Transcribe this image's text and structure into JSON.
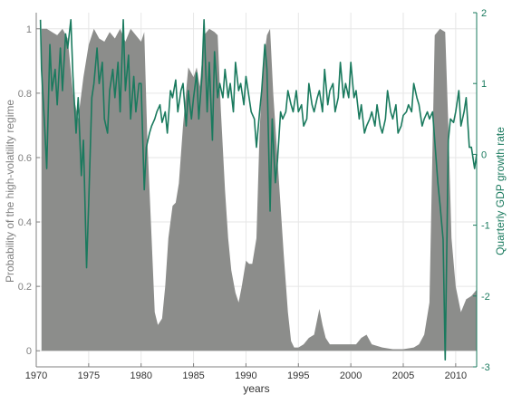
{
  "chart_data": {
    "type": "area",
    "xlabel": "years",
    "ylabel_left": "Probability of the high-volatility regime",
    "ylabel_right": "Quarterly GDP growth rate",
    "xlim": [
      1970,
      2012
    ],
    "ylim_left": [
      -0.05,
      1.05
    ],
    "ylim_right": [
      -3,
      2
    ],
    "x_ticks": [
      1970,
      1975,
      1980,
      1985,
      1990,
      1995,
      2000,
      2005,
      2010
    ],
    "y_left_ticks": [
      0,
      0.2,
      0.4,
      0.6,
      0.8,
      1
    ],
    "y_right_ticks": [
      -3,
      -2,
      -1,
      0,
      1,
      2
    ],
    "grid": true,
    "legend": "none",
    "colors": {
      "area": "#8c8d8b",
      "line": "#1a7a5e",
      "right_axis": "#1a7a5e",
      "left_axis": "#808080",
      "grid": "#e6e6e6"
    },
    "series": [
      {
        "axis": "left",
        "kind": "area",
        "points": [
          [
            1970.5,
            1.0
          ],
          [
            1971.0,
            1.0
          ],
          [
            1971.5,
            0.99
          ],
          [
            1972.0,
            0.98
          ],
          [
            1972.5,
            1.0
          ],
          [
            1973.0,
            0.97
          ],
          [
            1973.5,
            0.8
          ],
          [
            1974.0,
            0.72
          ],
          [
            1974.5,
            0.85
          ],
          [
            1975.0,
            0.95
          ],
          [
            1975.5,
            1.0
          ],
          [
            1976.0,
            0.97
          ],
          [
            1976.5,
            0.96
          ],
          [
            1977.0,
            0.99
          ],
          [
            1977.5,
            0.97
          ],
          [
            1978.0,
            1.0
          ],
          [
            1978.5,
            0.96
          ],
          [
            1979.0,
            1.0
          ],
          [
            1979.5,
            0.98
          ],
          [
            1980.0,
            0.96
          ],
          [
            1980.3,
            0.99
          ],
          [
            1980.6,
            0.65
          ],
          [
            1981.0,
            0.35
          ],
          [
            1981.3,
            0.12
          ],
          [
            1981.6,
            0.08
          ],
          [
            1982.0,
            0.1
          ],
          [
            1982.3,
            0.2
          ],
          [
            1982.6,
            0.35
          ],
          [
            1983.0,
            0.45
          ],
          [
            1983.3,
            0.46
          ],
          [
            1983.6,
            0.52
          ],
          [
            1984.0,
            0.7
          ],
          [
            1984.5,
            0.88
          ],
          [
            1985.0,
            0.85
          ],
          [
            1985.3,
            0.88
          ],
          [
            1985.6,
            0.82
          ],
          [
            1986.0,
            0.98
          ],
          [
            1986.5,
            1.0
          ],
          [
            1987.0,
            0.99
          ],
          [
            1987.3,
            0.98
          ],
          [
            1987.6,
            0.75
          ],
          [
            1988.0,
            0.5
          ],
          [
            1988.3,
            0.35
          ],
          [
            1988.6,
            0.25
          ],
          [
            1989.0,
            0.18
          ],
          [
            1989.3,
            0.15
          ],
          [
            1989.6,
            0.2
          ],
          [
            1990.0,
            0.28
          ],
          [
            1990.3,
            0.27
          ],
          [
            1990.6,
            0.27
          ],
          [
            1991.0,
            0.35
          ],
          [
            1991.3,
            0.68
          ],
          [
            1991.6,
            0.88
          ],
          [
            1992.0,
            0.98
          ],
          [
            1992.3,
            1.0
          ],
          [
            1992.6,
            0.8
          ],
          [
            1993.0,
            0.6
          ],
          [
            1993.3,
            0.45
          ],
          [
            1993.6,
            0.3
          ],
          [
            1994.0,
            0.12
          ],
          [
            1994.3,
            0.03
          ],
          [
            1994.6,
            0.01
          ],
          [
            1995.0,
            0.01
          ],
          [
            1995.5,
            0.02
          ],
          [
            1996.0,
            0.04
          ],
          [
            1996.5,
            0.05
          ],
          [
            1997.0,
            0.13
          ],
          [
            1997.3,
            0.08
          ],
          [
            1997.6,
            0.04
          ],
          [
            1998.0,
            0.02
          ],
          [
            1999.0,
            0.02
          ],
          [
            2000.0,
            0.02
          ],
          [
            2000.5,
            0.02
          ],
          [
            2001.0,
            0.04
          ],
          [
            2001.5,
            0.05
          ],
          [
            2002.0,
            0.02
          ],
          [
            2003.0,
            0.01
          ],
          [
            2004.0,
            0.005
          ],
          [
            2005.0,
            0.005
          ],
          [
            2006.0,
            0.01
          ],
          [
            2006.5,
            0.02
          ],
          [
            2007.0,
            0.05
          ],
          [
            2007.5,
            0.15
          ],
          [
            2008.0,
            0.98
          ],
          [
            2008.5,
            1.0
          ],
          [
            2009.0,
            0.99
          ],
          [
            2009.3,
            0.7
          ],
          [
            2009.6,
            0.35
          ],
          [
            2010.0,
            0.2
          ],
          [
            2010.5,
            0.12
          ],
          [
            2011.0,
            0.16
          ],
          [
            2011.5,
            0.17
          ],
          [
            2012.0,
            0.19
          ]
        ]
      },
      {
        "axis": "right",
        "kind": "line",
        "name": "",
        "points": [
          [
            1970.4,
            1.9
          ],
          [
            1970.5,
            1.2
          ],
          [
            1970.8,
            0.4
          ],
          [
            1971.0,
            -0.2
          ],
          [
            1971.3,
            1.55
          ],
          [
            1971.5,
            0.9
          ],
          [
            1971.8,
            1.2
          ],
          [
            1972.0,
            0.7
          ],
          [
            1972.3,
            1.5
          ],
          [
            1972.5,
            0.9
          ],
          [
            1972.8,
            1.7
          ],
          [
            1973.0,
            1.5
          ],
          [
            1973.3,
            1.9
          ],
          [
            1973.5,
            1.1
          ],
          [
            1973.8,
            0.3
          ],
          [
            1974.0,
            0.8
          ],
          [
            1974.3,
            -0.3
          ],
          [
            1974.5,
            0.2
          ],
          [
            1974.8,
            -1.6
          ],
          [
            1975.0,
            -0.7
          ],
          [
            1975.3,
            0.8
          ],
          [
            1975.5,
            1.0
          ],
          [
            1975.8,
            1.5
          ],
          [
            1976.0,
            1.0
          ],
          [
            1976.3,
            1.3
          ],
          [
            1976.5,
            0.5
          ],
          [
            1976.8,
            0.3
          ],
          [
            1977.0,
            0.9
          ],
          [
            1977.3,
            1.2
          ],
          [
            1977.5,
            0.8
          ],
          [
            1977.8,
            1.3
          ],
          [
            1978.0,
            0.6
          ],
          [
            1978.3,
            1.9
          ],
          [
            1978.5,
            0.9
          ],
          [
            1978.8,
            1.4
          ],
          [
            1979.0,
            0.5
          ],
          [
            1979.3,
            1.1
          ],
          [
            1979.5,
            0.6
          ],
          [
            1979.8,
            1.0
          ],
          [
            1980.0,
            1.0
          ],
          [
            1980.3,
            -0.5
          ],
          [
            1980.5,
            0.1
          ],
          [
            1980.8,
            0.3
          ],
          [
            1981.0,
            0.4
          ],
          [
            1981.3,
            0.5
          ],
          [
            1981.5,
            0.6
          ],
          [
            1981.8,
            0.7
          ],
          [
            1982.0,
            0.45
          ],
          [
            1982.3,
            0.6
          ],
          [
            1982.5,
            0.3
          ],
          [
            1982.8,
            0.9
          ],
          [
            1983.0,
            0.8
          ],
          [
            1983.3,
            1.05
          ],
          [
            1983.5,
            0.6
          ],
          [
            1983.8,
            0.9
          ],
          [
            1984.0,
            1.0
          ],
          [
            1984.3,
            0.4
          ],
          [
            1984.5,
            0.9
          ],
          [
            1984.8,
            0.5
          ],
          [
            1985.0,
            0.8
          ],
          [
            1985.3,
            1.15
          ],
          [
            1985.5,
            0.5
          ],
          [
            1985.8,
            1.1
          ],
          [
            1986.0,
            1.9
          ],
          [
            1986.3,
            0.6
          ],
          [
            1986.5,
            1.3
          ],
          [
            1986.8,
            0.2
          ],
          [
            1987.0,
            1.45
          ],
          [
            1987.3,
            0.8
          ],
          [
            1987.5,
            1.0
          ],
          [
            1987.8,
            0.8
          ],
          [
            1988.0,
            1.2
          ],
          [
            1988.3,
            0.8
          ],
          [
            1988.5,
            1.0
          ],
          [
            1988.8,
            0.6
          ],
          [
            1989.0,
            1.3
          ],
          [
            1989.3,
            0.9
          ],
          [
            1989.5,
            1.0
          ],
          [
            1989.8,
            0.7
          ],
          [
            1990.0,
            1.1
          ],
          [
            1990.3,
            0.8
          ],
          [
            1990.5,
            0.6
          ],
          [
            1990.8,
            0.5
          ],
          [
            1991.0,
            0.1
          ],
          [
            1991.3,
            0.6
          ],
          [
            1991.5,
            0.9
          ],
          [
            1991.8,
            1.55
          ],
          [
            1992.0,
            1.2
          ],
          [
            1992.3,
            -0.8
          ],
          [
            1992.5,
            0.5
          ],
          [
            1992.8,
            -0.4
          ],
          [
            1993.0,
            -0.1
          ],
          [
            1993.3,
            0.6
          ],
          [
            1993.5,
            0.5
          ],
          [
            1993.8,
            0.6
          ],
          [
            1994.0,
            0.9
          ],
          [
            1994.3,
            0.7
          ],
          [
            1994.5,
            0.6
          ],
          [
            1994.8,
            0.9
          ],
          [
            1995.0,
            0.6
          ],
          [
            1995.3,
            0.7
          ],
          [
            1995.5,
            0.4
          ],
          [
            1995.8,
            0.5
          ],
          [
            1996.0,
            1.0
          ],
          [
            1996.3,
            0.7
          ],
          [
            1996.5,
            0.6
          ],
          [
            1996.8,
            0.8
          ],
          [
            1997.0,
            0.9
          ],
          [
            1997.3,
            0.6
          ],
          [
            1997.5,
            1.2
          ],
          [
            1997.8,
            0.7
          ],
          [
            1998.0,
            0.9
          ],
          [
            1998.3,
            1.0
          ],
          [
            1998.5,
            0.6
          ],
          [
            1998.8,
            0.8
          ],
          [
            1999.0,
            1.3
          ],
          [
            1999.3,
            0.8
          ],
          [
            1999.5,
            1.0
          ],
          [
            1999.8,
            0.8
          ],
          [
            2000.0,
            1.3
          ],
          [
            2000.3,
            0.8
          ],
          [
            2000.5,
            0.9
          ],
          [
            2000.8,
            0.5
          ],
          [
            2001.0,
            0.7
          ],
          [
            2001.3,
            0.3
          ],
          [
            2001.5,
            0.4
          ],
          [
            2001.8,
            0.5
          ],
          [
            2002.0,
            0.6
          ],
          [
            2002.3,
            0.4
          ],
          [
            2002.5,
            0.7
          ],
          [
            2002.8,
            0.4
          ],
          [
            2003.0,
            0.3
          ],
          [
            2003.3,
            0.5
          ],
          [
            2003.5,
            0.9
          ],
          [
            2003.8,
            0.6
          ],
          [
            2004.0,
            0.5
          ],
          [
            2004.3,
            0.7
          ],
          [
            2004.5,
            0.3
          ],
          [
            2004.8,
            0.4
          ],
          [
            2005.0,
            0.55
          ],
          [
            2005.3,
            0.6
          ],
          [
            2005.5,
            0.7
          ],
          [
            2005.8,
            0.6
          ],
          [
            2006.0,
            1.0
          ],
          [
            2006.3,
            0.8
          ],
          [
            2006.5,
            0.7
          ],
          [
            2006.8,
            0.4
          ],
          [
            2007.0,
            0.5
          ],
          [
            2007.3,
            0.6
          ],
          [
            2007.5,
            0.5
          ],
          [
            2007.8,
            0.6
          ],
          [
            2008.0,
            0.2
          ],
          [
            2008.3,
            -0.4
          ],
          [
            2008.5,
            -0.7
          ],
          [
            2008.8,
            -1.2
          ],
          [
            2009.0,
            -2.9
          ],
          [
            2009.3,
            0.2
          ],
          [
            2009.5,
            0.5
          ],
          [
            2009.8,
            0.45
          ],
          [
            2010.0,
            0.6
          ],
          [
            2010.3,
            0.9
          ],
          [
            2010.5,
            0.4
          ],
          [
            2010.8,
            0.6
          ],
          [
            2011.0,
            0.8
          ],
          [
            2011.3,
            0.1
          ],
          [
            2011.5,
            0.1
          ],
          [
            2011.8,
            -0.2
          ],
          [
            2012.0,
            0.0
          ]
        ]
      }
    ]
  }
}
